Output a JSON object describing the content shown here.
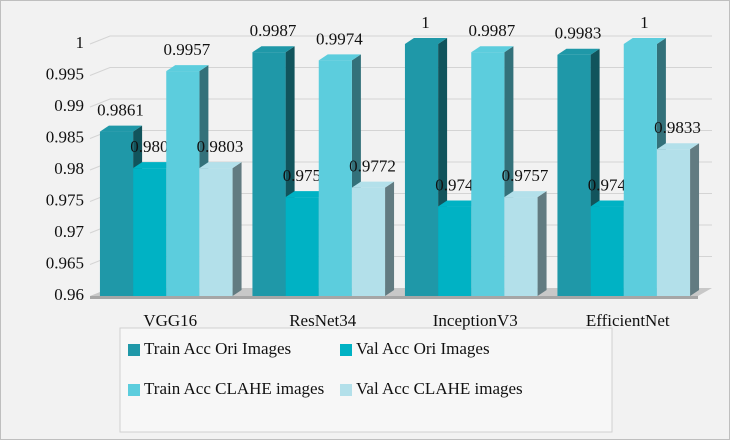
{
  "chart_data": {
    "type": "bar3d",
    "categories": [
      "VGG16",
      "ResNet34",
      "InceptionV3",
      "EfficientNet"
    ],
    "series": [
      {
        "name": "Train Acc Ori Images",
        "color": "#1f98a8",
        "values": [
          0.9861,
          0.9987,
          1,
          0.9983
        ]
      },
      {
        "name": "Val Acc Ori Images",
        "color": "#00b2c4",
        "values": [
          0.9803,
          0.9757,
          0.9742,
          0.9742
        ]
      },
      {
        "name": "Train Acc CLAHE images",
        "color": "#5ccddd",
        "values": [
          0.9957,
          0.9974,
          0.9987,
          1
        ]
      },
      {
        "name": "Val Acc CLAHE images",
        "color": "#b3e0ea",
        "values": [
          0.9803,
          0.9772,
          0.9757,
          0.9833
        ]
      }
    ],
    "ylim": [
      0.96,
      1
    ],
    "yticks": [
      0.96,
      0.965,
      0.97,
      0.975,
      0.98,
      0.985,
      0.99,
      0.995,
      1
    ],
    "grid": true,
    "legend": "bottom"
  }
}
